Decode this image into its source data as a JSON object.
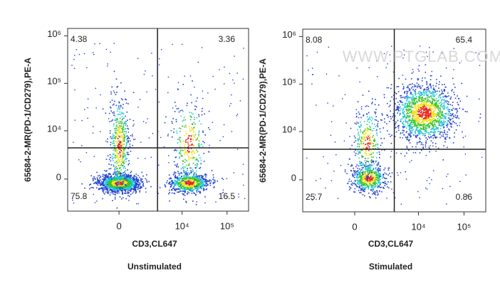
{
  "chart_data": [
    {
      "type": "flow-quadrant",
      "title": "Unstimulated",
      "x_label": "CD3,CL647",
      "y_label": "65684-2-MR(PD-1/CD279),PE-A",
      "xlim": [
        -5500,
        300000
      ],
      "ylim": [
        -4400,
        1430000
      ],
      "xticks": [
        0,
        {
          "value": 10000,
          "label": "10⁴"
        },
        {
          "value": 100000,
          "label": "10⁵"
        }
      ],
      "yticks": [
        0,
        {
          "value": 10000,
          "label": "10⁴"
        },
        {
          "value": 100000,
          "label": "10⁵"
        },
        {
          "value": 1000000,
          "label": "10⁶"
        }
      ],
      "gate": {
        "x": 2800,
        "y": 4200
      },
      "quadrants": {
        "upper_left": 4.38,
        "upper_right": 3.36,
        "lower_left": 75.8,
        "lower_right": 16.5
      }
    },
    {
      "type": "flow-quadrant",
      "title": "Stimulated",
      "x_label": "CD3,CL647",
      "y_label": "65684-2-MR(PD-1/CD279),PE-A",
      "watermark": "WWW.PTGLAB.COM",
      "xlim": [
        -5500,
        300000
      ],
      "ylim": [
        -4400,
        1430000
      ],
      "xticks": [
        0,
        {
          "value": 10000,
          "label": "10⁴"
        },
        {
          "value": 100000,
          "label": "10⁵"
        }
      ],
      "yticks": [
        0,
        {
          "value": 10000,
          "label": "10⁴"
        },
        {
          "value": 100000,
          "label": "10⁵"
        },
        {
          "value": 1000000,
          "label": "10⁶"
        }
      ],
      "gate": {
        "x": 2900,
        "y": 4050
      },
      "quadrants": {
        "upper_left": 8.08,
        "upper_right": 65.4,
        "lower_left": 25.7,
        "lower_right": 0.86
      }
    }
  ]
}
